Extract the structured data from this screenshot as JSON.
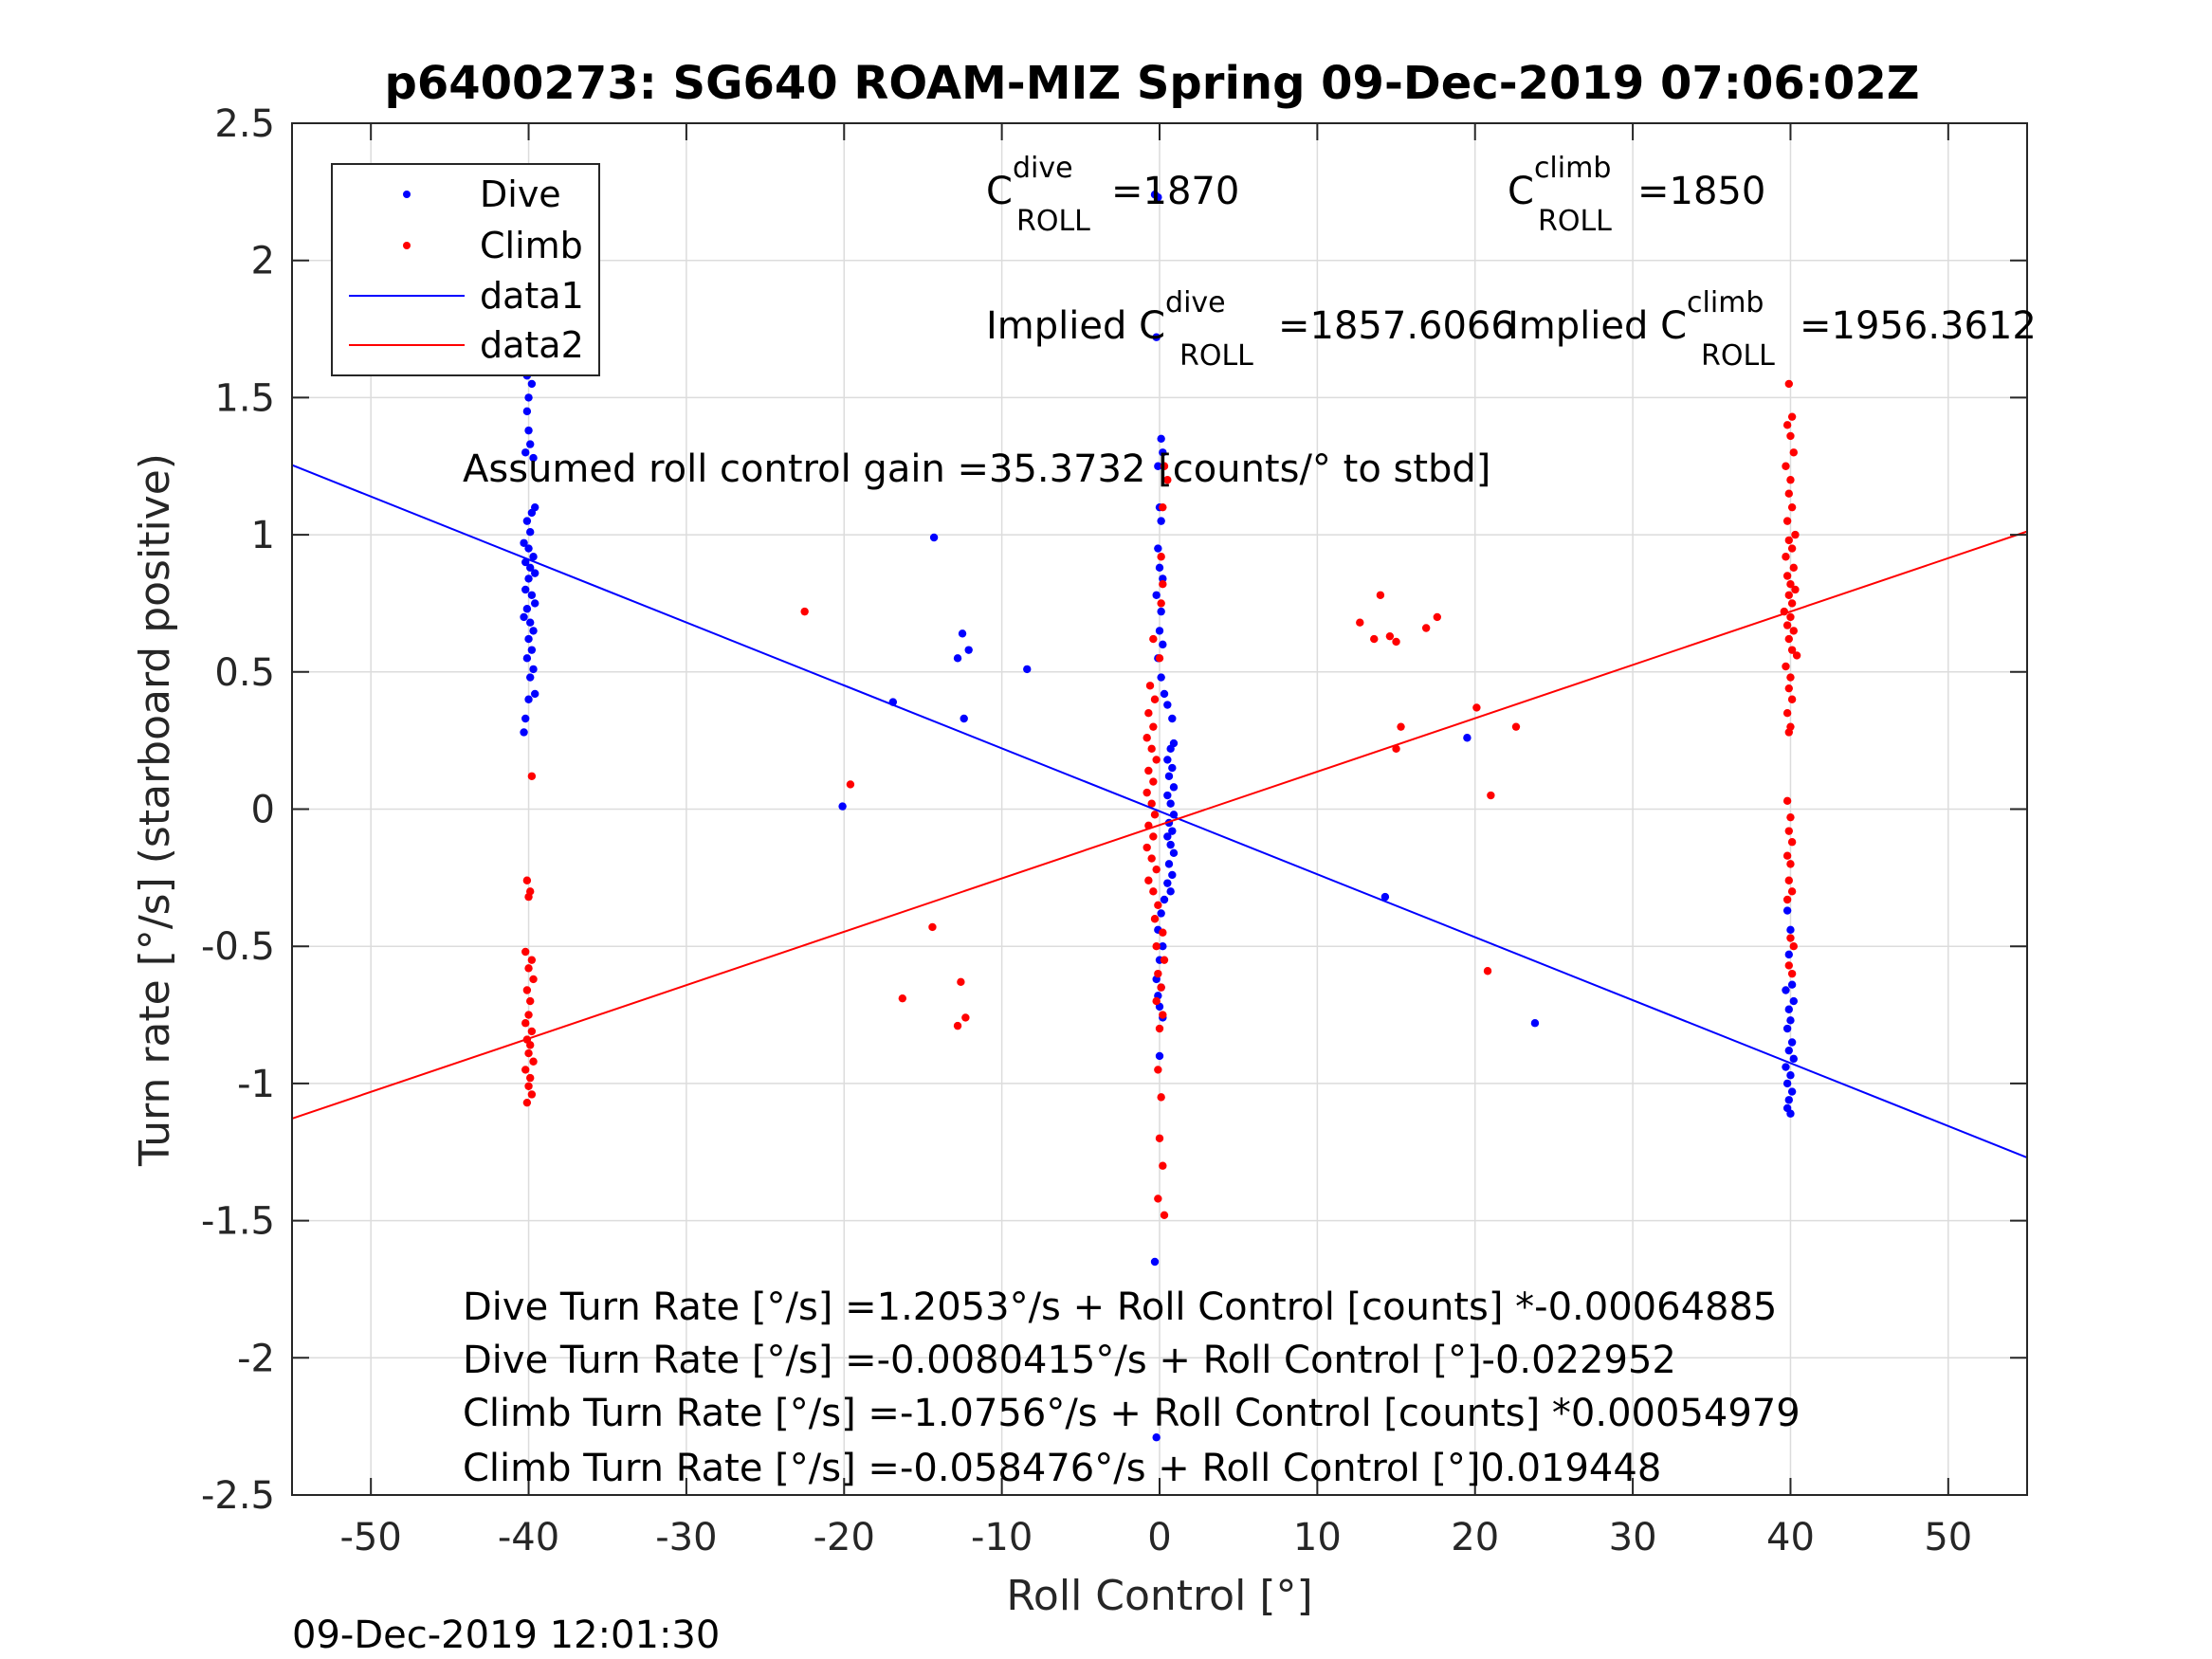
{
  "title": "p6400273: SG640 ROAM-MIZ Spring 09-Dec-2019 07:06:02Z",
  "timestamp": "09-Dec-2019 12:01:30",
  "annotations": {
    "c_base": "C",
    "c_dive_sup": "dive",
    "c_dive_sub": "ROLL",
    "c_dive_val": "=1870",
    "c_climb_sup": "climb",
    "c_climb_sub": "ROLL",
    "c_climb_val": "=1850",
    "implied": "Implied C",
    "implied_dive_sup": "dive",
    "implied_dive_sub": "ROLL",
    "implied_dive_val": "=1857.6066",
    "implied_climb_sup": "climb",
    "implied_climb_sub": "ROLL",
    "implied_climb_val": "=1956.3612",
    "gain": "Assumed roll control gain =35.3732 [counts/° to stbd]",
    "eq1": "Dive Turn Rate [°/s] =1.2053°/s + Roll Control [counts] *-0.00064885",
    "eq2": "Dive Turn Rate [°/s] =-0.0080415°/s + Roll Control [°]-0.022952",
    "eq3": "Climb Turn Rate [°/s] =-1.0756°/s + Roll Control [counts] *0.00054979",
    "eq4": "Climb Turn Rate [°/s] =-0.058476°/s + Roll Control [°]0.019448"
  },
  "chart_data": {
    "type": "scatter",
    "xlabel": "Roll Control [°]",
    "ylabel": "Turn rate [°/s] (starboard positive)",
    "xlim": [
      -55,
      55
    ],
    "ylim": [
      -2.5,
      2.5
    ],
    "xticks": [
      -50,
      -40,
      -30,
      -20,
      -10,
      0,
      10,
      20,
      30,
      40,
      50
    ],
    "yticks": [
      -2.5,
      -2,
      -1.5,
      -1,
      -0.5,
      0,
      0.5,
      1,
      1.5,
      2,
      2.5
    ],
    "xtick_labels": [
      "-50",
      "-40",
      "-30",
      "-20",
      "-10",
      "0",
      "10",
      "20",
      "30",
      "40",
      "50"
    ],
    "ytick_labels": [
      "-2.5",
      "-2",
      "-1.5",
      "-1",
      "-0.5",
      "0",
      "0.5",
      "1",
      "1.5",
      "2",
      "2.5"
    ],
    "grid": true,
    "legend_position": "top-left",
    "series": [
      {
        "name": "Dive",
        "kind": "points",
        "color": "#0000ff",
        "points": [
          [
            -40.1,
            1.72
          ],
          [
            -40.2,
            1.7
          ],
          [
            -39.9,
            1.67
          ],
          [
            -40.0,
            1.62
          ],
          [
            -40.1,
            1.58
          ],
          [
            -39.8,
            1.55
          ],
          [
            -40.0,
            1.5
          ],
          [
            -40.1,
            1.45
          ],
          [
            -40.0,
            1.38
          ],
          [
            -39.9,
            1.33
          ],
          [
            -40.2,
            1.3
          ],
          [
            -39.7,
            1.28
          ],
          [
            -39.6,
            1.1
          ],
          [
            -39.8,
            1.08
          ],
          [
            -40.1,
            1.05
          ],
          [
            -39.9,
            1.01
          ],
          [
            -40.3,
            0.97
          ],
          [
            -40.0,
            0.95
          ],
          [
            -39.7,
            0.92
          ],
          [
            -40.2,
            0.9
          ],
          [
            -39.9,
            0.88
          ],
          [
            -39.6,
            0.86
          ],
          [
            -40.0,
            0.84
          ],
          [
            -40.2,
            0.8
          ],
          [
            -39.8,
            0.78
          ],
          [
            -39.6,
            0.75
          ],
          [
            -40.1,
            0.73
          ],
          [
            -40.3,
            0.7
          ],
          [
            -39.9,
            0.68
          ],
          [
            -39.7,
            0.65
          ],
          [
            -40.0,
            0.62
          ],
          [
            -39.8,
            0.58
          ],
          [
            -40.1,
            0.55
          ],
          [
            -39.7,
            0.51
          ],
          [
            -39.9,
            0.48
          ],
          [
            -39.6,
            0.42
          ],
          [
            -40.0,
            0.4
          ],
          [
            -40.2,
            0.33
          ],
          [
            -40.3,
            0.28
          ],
          [
            -14.3,
            0.99
          ],
          [
            -12.5,
            0.64
          ],
          [
            -12.1,
            0.58
          ],
          [
            -12.8,
            0.55
          ],
          [
            -8.4,
            0.51
          ],
          [
            -16.9,
            0.39
          ],
          [
            -12.4,
            0.33
          ],
          [
            -20.1,
            0.01
          ],
          [
            -0.3,
            2.24
          ],
          [
            -0.1,
            2.23
          ],
          [
            -0.2,
            1.72
          ],
          [
            0.1,
            1.35
          ],
          [
            0.2,
            1.3
          ],
          [
            -0.1,
            1.25
          ],
          [
            0.0,
            1.1
          ],
          [
            0.1,
            1.05
          ],
          [
            -0.1,
            0.95
          ],
          [
            0.0,
            0.88
          ],
          [
            0.2,
            0.84
          ],
          [
            -0.2,
            0.78
          ],
          [
            0.1,
            0.72
          ],
          [
            0.0,
            0.65
          ],
          [
            0.2,
            0.6
          ],
          [
            -0.1,
            0.55
          ],
          [
            0.1,
            0.48
          ],
          [
            0.3,
            0.42
          ],
          [
            0.5,
            0.38
          ],
          [
            0.8,
            0.33
          ],
          [
            0.9,
            0.24
          ],
          [
            0.7,
            0.22
          ],
          [
            0.5,
            0.18
          ],
          [
            0.8,
            0.15
          ],
          [
            0.6,
            0.12
          ],
          [
            0.9,
            0.08
          ],
          [
            0.5,
            0.05
          ],
          [
            0.7,
            0.02
          ],
          [
            0.9,
            -0.02
          ],
          [
            0.6,
            -0.05
          ],
          [
            0.8,
            -0.08
          ],
          [
            0.5,
            -0.1
          ],
          [
            0.7,
            -0.13
          ],
          [
            0.9,
            -0.16
          ],
          [
            0.6,
            -0.2
          ],
          [
            0.8,
            -0.24
          ],
          [
            0.5,
            -0.27
          ],
          [
            0.7,
            -0.3
          ],
          [
            0.3,
            -0.33
          ],
          [
            0.1,
            -0.38
          ],
          [
            -0.1,
            -0.44
          ],
          [
            0.2,
            -0.5
          ],
          [
            0.0,
            -0.55
          ],
          [
            -0.2,
            -0.62
          ],
          [
            0.1,
            -0.65
          ],
          [
            -0.1,
            -0.68
          ],
          [
            0.0,
            -0.72
          ],
          [
            0.2,
            -0.76
          ],
          [
            0.0,
            -0.9
          ],
          [
            -0.3,
            -1.65
          ],
          [
            -0.2,
            -2.29
          ],
          [
            14.3,
            -0.32
          ],
          [
            19.5,
            0.26
          ],
          [
            23.8,
            -0.78
          ],
          [
            39.8,
            -0.37
          ],
          [
            40.0,
            -0.44
          ],
          [
            39.9,
            -0.53
          ],
          [
            40.1,
            -0.64
          ],
          [
            39.7,
            -0.66
          ],
          [
            40.2,
            -0.7
          ],
          [
            39.9,
            -0.73
          ],
          [
            40.0,
            -0.77
          ],
          [
            39.8,
            -0.8
          ],
          [
            40.1,
            -0.85
          ],
          [
            39.9,
            -0.88
          ],
          [
            40.2,
            -0.91
          ],
          [
            39.7,
            -0.94
          ],
          [
            40.0,
            -0.97
          ],
          [
            39.8,
            -1.0
          ],
          [
            40.1,
            -1.03
          ],
          [
            39.9,
            -1.06
          ],
          [
            39.8,
            -1.09
          ],
          [
            40.0,
            -1.11
          ]
        ]
      },
      {
        "name": "Climb",
        "kind": "points",
        "color": "#ff0000",
        "points": [
          [
            -39.8,
            0.12
          ],
          [
            -40.1,
            -0.26
          ],
          [
            -39.9,
            -0.3
          ],
          [
            -40.0,
            -0.32
          ],
          [
            -40.2,
            -0.52
          ],
          [
            -39.8,
            -0.55
          ],
          [
            -40.0,
            -0.58
          ],
          [
            -39.7,
            -0.62
          ],
          [
            -40.1,
            -0.66
          ],
          [
            -39.9,
            -0.7
          ],
          [
            -40.0,
            -0.75
          ],
          [
            -40.2,
            -0.78
          ],
          [
            -39.8,
            -0.81
          ],
          [
            -40.1,
            -0.84
          ],
          [
            -39.9,
            -0.86
          ],
          [
            -40.0,
            -0.89
          ],
          [
            -39.7,
            -0.92
          ],
          [
            -40.2,
            -0.95
          ],
          [
            -39.9,
            -0.98
          ],
          [
            -40.0,
            -1.01
          ],
          [
            -39.8,
            -1.04
          ],
          [
            -40.1,
            -1.07
          ],
          [
            -22.5,
            0.72
          ],
          [
            -19.6,
            0.09
          ],
          [
            -14.4,
            -0.43
          ],
          [
            -16.3,
            -0.69
          ],
          [
            -12.6,
            -0.63
          ],
          [
            -12.3,
            -0.76
          ],
          [
            -12.8,
            -0.79
          ],
          [
            0.3,
            1.25
          ],
          [
            0.5,
            1.2
          ],
          [
            0.2,
            1.1
          ],
          [
            0.1,
            0.92
          ],
          [
            0.2,
            0.82
          ],
          [
            0.1,
            0.75
          ],
          [
            -0.4,
            0.62
          ],
          [
            0.0,
            0.55
          ],
          [
            -0.6,
            0.45
          ],
          [
            -0.3,
            0.4
          ],
          [
            -0.7,
            0.35
          ],
          [
            -0.4,
            0.3
          ],
          [
            -0.8,
            0.26
          ],
          [
            -0.5,
            0.22
          ],
          [
            -0.2,
            0.18
          ],
          [
            -0.7,
            0.14
          ],
          [
            -0.4,
            0.1
          ],
          [
            -0.8,
            0.06
          ],
          [
            -0.5,
            0.02
          ],
          [
            -0.3,
            -0.02
          ],
          [
            -0.7,
            -0.06
          ],
          [
            -0.4,
            -0.1
          ],
          [
            -0.8,
            -0.14
          ],
          [
            -0.5,
            -0.18
          ],
          [
            -0.2,
            -0.22
          ],
          [
            -0.7,
            -0.26
          ],
          [
            -0.4,
            -0.3
          ],
          [
            -0.1,
            -0.35
          ],
          [
            -0.3,
            -0.4
          ],
          [
            0.2,
            -0.45
          ],
          [
            -0.2,
            -0.5
          ],
          [
            0.3,
            -0.55
          ],
          [
            -0.1,
            -0.6
          ],
          [
            0.1,
            -0.65
          ],
          [
            -0.2,
            -0.7
          ],
          [
            0.2,
            -0.75
          ],
          [
            0.0,
            -0.8
          ],
          [
            -0.1,
            -0.95
          ],
          [
            0.1,
            -1.05
          ],
          [
            0.0,
            -1.2
          ],
          [
            0.2,
            -1.3
          ],
          [
            -0.1,
            -1.42
          ],
          [
            0.3,
            -1.48
          ],
          [
            12.7,
            0.68
          ],
          [
            13.6,
            0.62
          ],
          [
            14.0,
            0.78
          ],
          [
            14.6,
            0.63
          ],
          [
            15.0,
            0.61
          ],
          [
            15.3,
            0.3
          ],
          [
            15.0,
            0.22
          ],
          [
            16.9,
            0.66
          ],
          [
            17.6,
            0.7
          ],
          [
            20.1,
            0.37
          ],
          [
            22.6,
            0.3
          ],
          [
            21.0,
            0.05
          ],
          [
            20.8,
            -0.59
          ],
          [
            39.9,
            1.55
          ],
          [
            40.1,
            1.43
          ],
          [
            39.8,
            1.4
          ],
          [
            40.0,
            1.36
          ],
          [
            40.2,
            1.3
          ],
          [
            39.7,
            1.25
          ],
          [
            40.0,
            1.2
          ],
          [
            39.9,
            1.15
          ],
          [
            40.1,
            1.1
          ],
          [
            39.8,
            1.05
          ],
          [
            40.3,
            1.0
          ],
          [
            39.9,
            0.98
          ],
          [
            40.1,
            0.95
          ],
          [
            39.7,
            0.92
          ],
          [
            40.2,
            0.88
          ],
          [
            39.8,
            0.85
          ],
          [
            40.0,
            0.82
          ],
          [
            40.3,
            0.8
          ],
          [
            39.9,
            0.78
          ],
          [
            40.1,
            0.75
          ],
          [
            39.6,
            0.72
          ],
          [
            40.0,
            0.7
          ],
          [
            39.8,
            0.67
          ],
          [
            40.2,
            0.65
          ],
          [
            39.9,
            0.62
          ],
          [
            40.1,
            0.58
          ],
          [
            40.4,
            0.56
          ],
          [
            39.7,
            0.52
          ],
          [
            40.0,
            0.48
          ],
          [
            39.9,
            0.44
          ],
          [
            40.1,
            0.4
          ],
          [
            39.8,
            0.35
          ],
          [
            40.0,
            0.3
          ],
          [
            39.9,
            0.28
          ],
          [
            39.8,
            0.03
          ],
          [
            40.0,
            -0.03
          ],
          [
            39.9,
            -0.08
          ],
          [
            40.1,
            -0.12
          ],
          [
            39.8,
            -0.17
          ],
          [
            40.0,
            -0.2
          ],
          [
            39.9,
            -0.26
          ],
          [
            40.1,
            -0.3
          ],
          [
            39.8,
            -0.33
          ],
          [
            40.0,
            -0.47
          ],
          [
            40.2,
            -0.5
          ],
          [
            39.9,
            -0.57
          ],
          [
            40.1,
            -0.6
          ]
        ]
      },
      {
        "name": "data1",
        "kind": "line",
        "color": "#0000ff",
        "x": [
          -55,
          55
        ],
        "y": [
          1.254,
          -1.27
        ]
      },
      {
        "name": "data2",
        "kind": "line",
        "color": "#ff0000",
        "x": [
          -55,
          55
        ],
        "y": [
          -1.128,
          1.012
        ]
      }
    ]
  }
}
